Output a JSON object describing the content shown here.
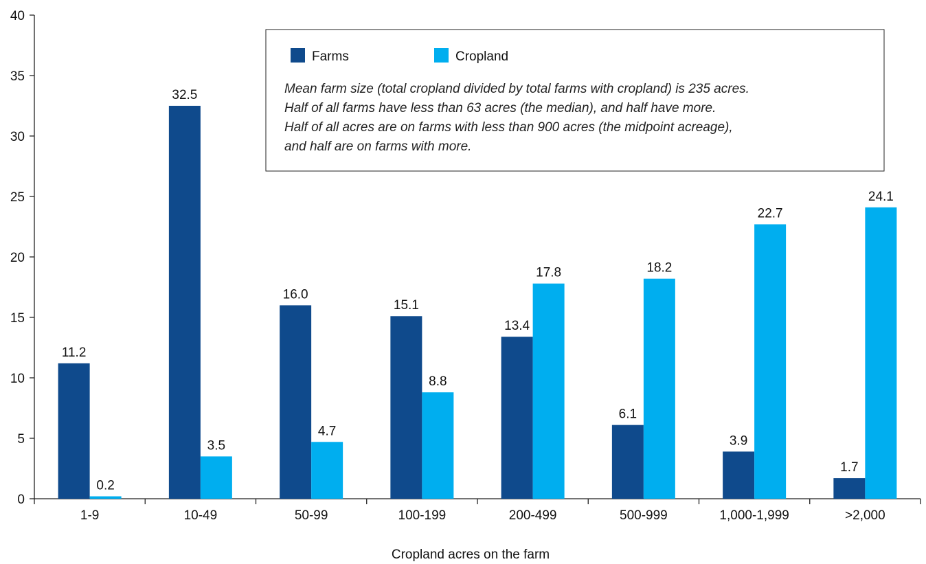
{
  "chart_data": {
    "type": "bar",
    "categories": [
      "1-9",
      "10-49",
      "50-99",
      "100-199",
      "200-499",
      "500-999",
      "1,000-1,999",
      ">2,000"
    ],
    "series": [
      {
        "name": "Farms",
        "color": "#0f4a8c",
        "values": [
          11.2,
          32.5,
          16.0,
          15.1,
          13.4,
          6.1,
          3.9,
          1.7
        ],
        "labels": [
          "11.2",
          "32.5",
          "16.0",
          "15.1",
          "13.4",
          "6.1",
          "3.9",
          "1.7"
        ]
      },
      {
        "name": "Cropland",
        "color": "#00aeef",
        "values": [
          0.2,
          3.5,
          4.7,
          8.8,
          17.8,
          18.2,
          22.7,
          24.1
        ],
        "labels": [
          "0.2",
          "3.5",
          "4.7",
          "8.8",
          "17.8",
          "18.2",
          "22.7",
          "24.1"
        ]
      }
    ],
    "yticks": [
      "0",
      "5",
      "10",
      "15",
      "20",
      "25",
      "30",
      "35",
      "40"
    ],
    "ylim": [
      0,
      40
    ],
    "xlabel": "Cropland acres on the farm",
    "ylabel": "",
    "grid": false,
    "legend_position": "top-right",
    "note_lines": [
      "Mean farm size (total cropland divided by total farms with cropland) is 235 acres.",
      "Half of all farms have less than 63 acres (the median), and half have more.",
      "Half of all acres are on farms with less than 900 acres (the midpoint acreage),",
      "and half are on farms with more."
    ]
  }
}
